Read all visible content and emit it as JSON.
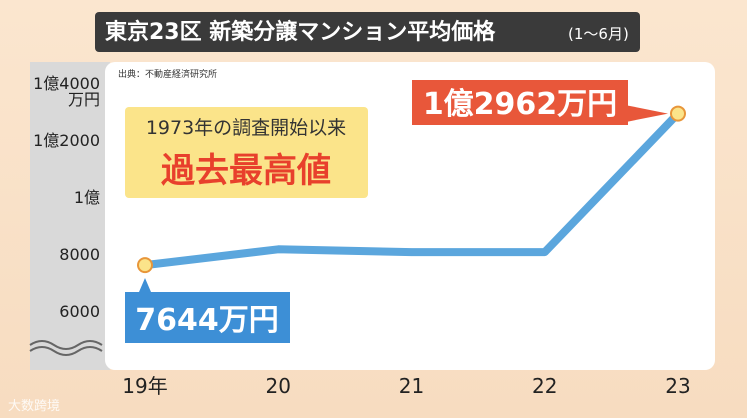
{
  "chart_data": {
    "type": "line",
    "title": "東京23区 新築分譲マンション平均価格",
    "subtitle": "(1〜6月)",
    "source": "出典：不動産経済研究所",
    "annotation": [
      "1973年の調査開始以来",
      "過去最高値"
    ],
    "watermark": "大数跨境",
    "categories": [
      "19年",
      "20",
      "21",
      "22",
      "23"
    ],
    "values": [
      7644,
      8200,
      8100,
      8100,
      12962
    ],
    "value_labels": [
      "7644万円",
      null,
      null,
      null,
      "1億2962万円"
    ],
    "color": "#5ba6dd",
    "ylim": [
      4800,
      14800
    ],
    "yticks": [
      6000,
      8000,
      {
        "value": 10000,
        "label": "1億"
      },
      {
        "value": 12000,
        "label": "1億2000"
      },
      {
        "value": 14000,
        "label": "1億4000\n万円"
      }
    ]
  }
}
